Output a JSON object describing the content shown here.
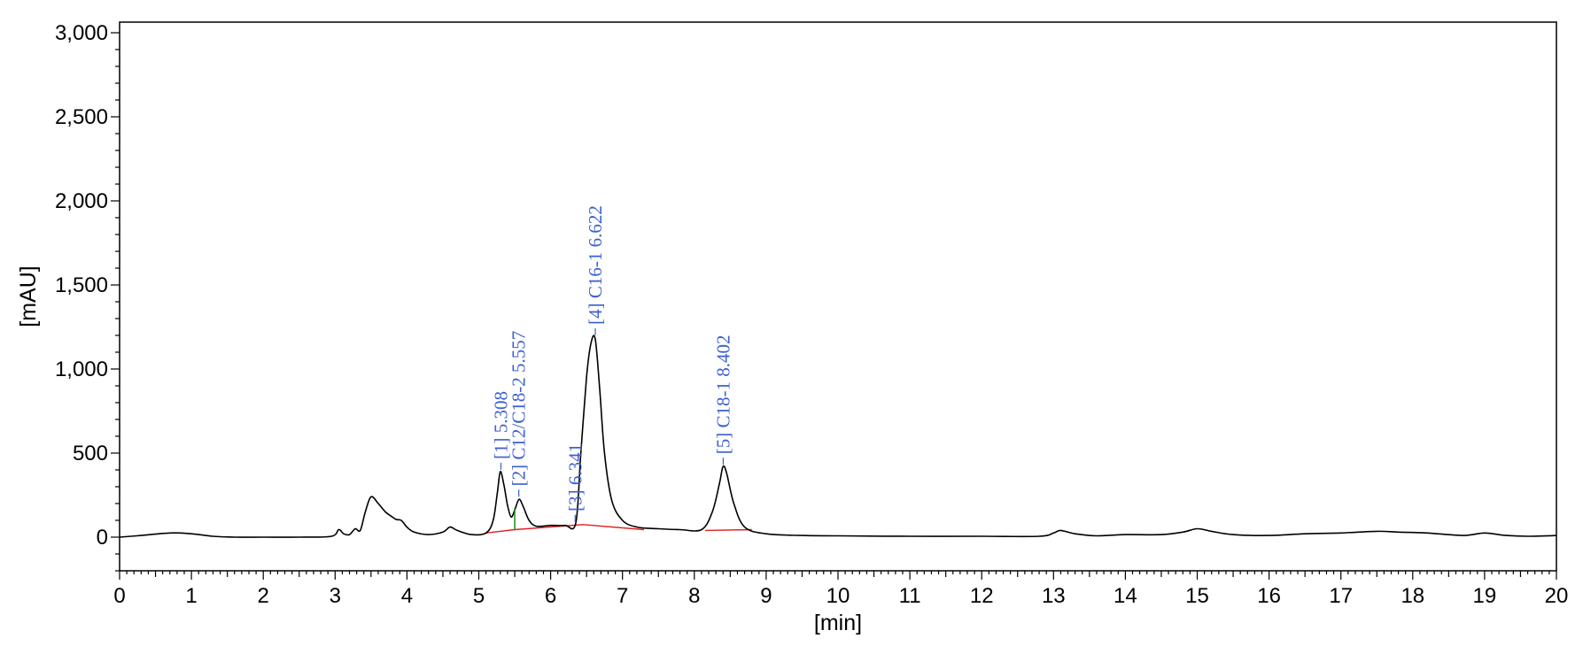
{
  "chart_data": {
    "type": "line",
    "title": "",
    "xlabel": "[min]",
    "ylabel": "[mAU]",
    "xlim": [
      0,
      20
    ],
    "ylim": [
      -200,
      3050
    ],
    "x_ticks": [
      0,
      1,
      2,
      3,
      4,
      5,
      6,
      7,
      8,
      9,
      10,
      11,
      12,
      13,
      14,
      15,
      16,
      17,
      18,
      19,
      20
    ],
    "x_tick_labels": [
      "0",
      "1",
      "2",
      "3",
      "4",
      "5",
      "6",
      "7",
      "8",
      "9",
      "10",
      "11",
      "12",
      "13",
      "14",
      "15",
      "16",
      "17",
      "18",
      "19",
      "20"
    ],
    "y_ticks": [
      0,
      500,
      1000,
      1500,
      2000,
      2500,
      3000
    ],
    "y_tick_labels": [
      "0",
      "500",
      "1,000",
      "1,500",
      "2,000",
      "2,500",
      "3,000"
    ],
    "grid": false,
    "colors": {
      "trace": "#000000",
      "baseline": "#e02020",
      "labels": "#3a5fd0",
      "split": "#1a8a1a"
    },
    "series": [
      {
        "x": [
          0,
          0.3,
          0.7,
          1.0,
          1.3,
          1.6,
          2.0,
          2.5,
          2.95,
          3.05,
          3.12,
          3.2,
          3.28,
          3.35,
          3.42,
          3.5,
          3.6,
          3.7,
          3.78,
          3.85,
          3.92,
          4.0,
          4.1,
          4.3,
          4.5,
          4.6,
          4.7,
          4.9,
          5.1,
          5.2,
          5.26,
          5.3,
          5.35,
          5.4,
          5.45,
          5.5,
          5.56,
          5.62,
          5.7,
          5.8,
          6.0,
          6.2,
          6.35,
          6.42,
          6.5,
          6.56,
          6.62,
          6.68,
          6.75,
          6.85,
          7.0,
          7.2,
          7.5,
          7.8,
          8.1,
          8.25,
          8.35,
          8.4,
          8.45,
          8.55,
          8.7,
          9.0,
          9.5,
          10.0,
          11.0,
          12.0,
          12.8,
          13.0,
          13.1,
          13.3,
          13.6,
          14.0,
          14.5,
          14.8,
          15.0,
          15.2,
          15.5,
          16.0,
          16.5,
          17.0,
          17.5,
          17.8,
          18.2,
          18.7,
          19.0,
          19.3,
          19.6,
          20.0
        ],
        "y": [
          0,
          10,
          25,
          20,
          5,
          0,
          0,
          0,
          5,
          45,
          20,
          15,
          50,
          40,
          150,
          240,
          200,
          150,
          125,
          105,
          100,
          60,
          30,
          15,
          30,
          60,
          40,
          15,
          25,
          100,
          270,
          390,
          310,
          190,
          120,
          160,
          225,
          180,
          100,
          65,
          70,
          70,
          85,
          500,
          950,
          1150,
          1180,
          900,
          500,
          220,
          100,
          60,
          50,
          45,
          45,
          150,
          320,
          420,
          380,
          200,
          60,
          20,
          10,
          8,
          5,
          5,
          5,
          25,
          40,
          20,
          8,
          15,
          15,
          30,
          50,
          35,
          15,
          10,
          20,
          25,
          35,
          30,
          25,
          10,
          25,
          10,
          5,
          10
        ]
      }
    ],
    "baseline_segments": [
      {
        "x": [
          5.1,
          5.5,
          6.45,
          7.3
        ],
        "y": [
          25,
          45,
          75,
          45
        ]
      },
      {
        "x": [
          8.15,
          8.8
        ],
        "y": [
          40,
          45
        ]
      }
    ],
    "split_marker": {
      "x": 5.5,
      "y_low": 45,
      "y_high": 175
    },
    "peak_labels": [
      {
        "text": "[1]  5.308",
        "rt": 5.308,
        "base": 390
      },
      {
        "text": "[2] C12/C18-2 5.557",
        "rt": 5.557,
        "base": 230
      },
      {
        "text": "[3]  6.341",
        "rt": 6.341,
        "base": 80
      },
      {
        "text": "[4] C16-1 6.622",
        "rt": 6.622,
        "base": 1190
      },
      {
        "text": "[5] C18-1 8.402",
        "rt": 8.402,
        "base": 420
      }
    ]
  }
}
